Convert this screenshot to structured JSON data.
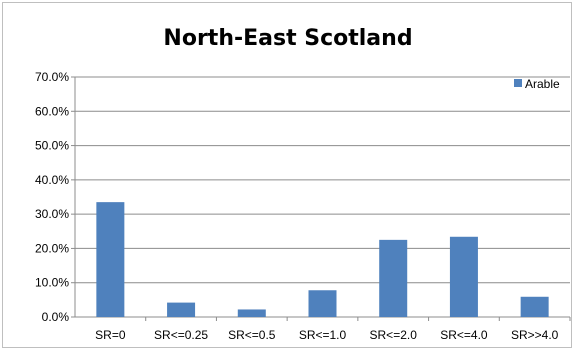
{
  "chart_data": {
    "type": "bar",
    "title": "North-East Scotland",
    "xlabel": "",
    "ylabel": "",
    "categories": [
      "SR=0",
      "SR<=0.25",
      "SR<=0.5",
      "SR<=1.0",
      "SR<=2.0",
      "SR<=4.0",
      "SR>>4.0"
    ],
    "series": [
      {
        "name": "Arable",
        "values": [
          33.5,
          4.2,
          2.2,
          7.8,
          22.5,
          23.4,
          5.9
        ],
        "color": "#4f81bd"
      }
    ],
    "ylim": [
      0,
      70
    ],
    "yticks": [
      0,
      10,
      20,
      30,
      40,
      50,
      60,
      70
    ],
    "ytick_labels": [
      "0.0%",
      "10.0%",
      "20.0%",
      "30.0%",
      "40.0%",
      "50.0%",
      "60.0%",
      "70.0%"
    ],
    "grid": true,
    "legend": "top-right"
  }
}
